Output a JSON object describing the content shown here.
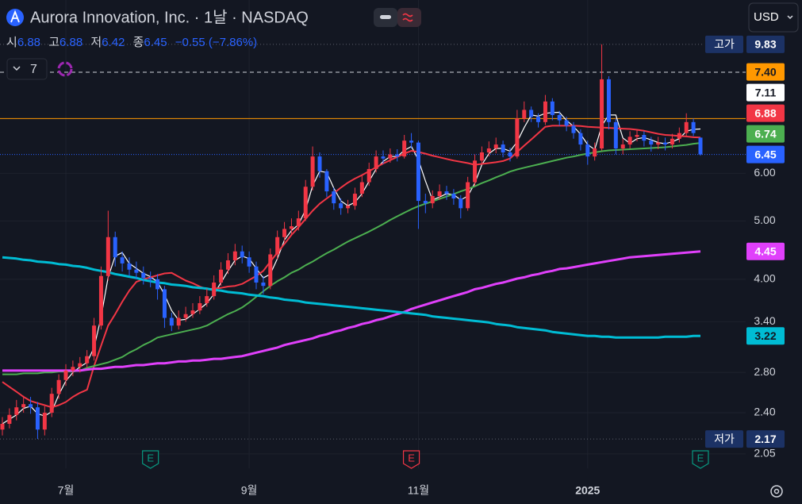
{
  "chart_data": {
    "type": "candlestick",
    "title": "Aurora Innovation, Inc. · 1날 · NASDAQ",
    "currency": "USD",
    "indicator_count": "7",
    "legend": {
      "open_label": "시",
      "high_label": "고",
      "low_label": "저",
      "close_label": "종",
      "change": "−0.55 (−7.86%)"
    },
    "high_label": "고가",
    "low_label": "저가",
    "log": true,
    "grid": true,
    "up_color": "#f23645",
    "down_color": "#2962ff",
    "ylim": [
      1.94,
      11.65
    ],
    "yticks": [
      {
        "value": 6,
        "label": "6.00"
      },
      {
        "value": 5,
        "label": "5.00"
      },
      {
        "value": 4,
        "label": "4.00"
      },
      {
        "value": 3.4,
        "label": "3.40"
      },
      {
        "value": 2.8,
        "label": "2.80"
      },
      {
        "value": 2.4,
        "label": "2.40"
      },
      {
        "value": 2.05,
        "label": "2.05"
      }
    ],
    "reference_line": {
      "value": 7.4,
      "label": "7.40",
      "color": "#ff9800"
    },
    "categories": [
      null,
      null,
      null,
      null,
      null,
      null,
      null,
      null,
      null,
      "7월",
      null,
      null,
      null,
      null,
      null,
      null,
      null,
      null,
      null,
      null,
      null,
      null,
      null,
      null,
      null,
      null,
      null,
      null,
      null,
      null,
      null,
      null,
      null,
      null,
      null,
      "9월",
      null,
      null,
      null,
      null,
      null,
      null,
      null,
      null,
      null,
      null,
      null,
      null,
      null,
      null,
      null,
      null,
      null,
      null,
      null,
      null,
      null,
      null,
      null,
      "11월",
      null,
      null,
      null,
      null,
      null,
      null,
      null,
      null,
      null,
      null,
      null,
      null,
      null,
      null,
      null,
      null,
      null,
      null,
      null,
      null,
      null,
      null,
      null,
      "2025",
      null,
      null,
      null,
      null,
      null,
      null,
      null,
      null,
      null,
      null,
      null,
      null,
      null,
      null,
      null,
      null
    ],
    "open": [
      2.25,
      2.3,
      2.38,
      2.45,
      2.48,
      2.45,
      2.25,
      2.4,
      2.58,
      2.72,
      2.82,
      2.86,
      2.9,
      2.98,
      3.35,
      4.05,
      4.7,
      4.35,
      4.25,
      4.15,
      4.1,
      4.02,
      4.0,
      3.85,
      3.45,
      3.35,
      3.45,
      3.5,
      3.55,
      3.65,
      3.75,
      3.95,
      4.15,
      4.3,
      4.45,
      4.35,
      4.2,
      3.95,
      3.9,
      4.4,
      4.7,
      4.85,
      4.9,
      5.05,
      5.7,
      6.4,
      6.05,
      5.6,
      5.35,
      5.25,
      5.3,
      5.55,
      5.8,
      6.1,
      6.4,
      6.35,
      6.45,
      6.4,
      6.8,
      6.75,
      5.4,
      5.35,
      5.5,
      5.6,
      5.55,
      5.45,
      5.25,
      5.8,
      6.3,
      6.5,
      6.6,
      6.7,
      6.5,
      6.4,
      7.4,
      7.65,
      7.45,
      7.3,
      7.9,
      7.5,
      7.35,
      7.2,
      7.0,
      6.7,
      6.4,
      6.6,
      8.6,
      7.3,
      6.6,
      6.7,
      6.9,
      6.95,
      6.8,
      6.7,
      6.75,
      6.7,
      6.85,
      7.0,
      7.3,
      6.88
    ],
    "high": [
      2.36,
      2.44,
      2.52,
      2.56,
      2.55,
      2.5,
      2.46,
      2.64,
      2.78,
      2.89,
      2.93,
      2.97,
      3.05,
      3.45,
      4.2,
      5.2,
      4.8,
      4.45,
      4.35,
      4.28,
      4.2,
      4.12,
      4.08,
      3.9,
      3.52,
      3.55,
      3.6,
      3.65,
      3.75,
      3.86,
      4.06,
      4.27,
      4.42,
      4.58,
      4.55,
      4.45,
      4.28,
      4.05,
      4.5,
      4.82,
      4.98,
      5.05,
      5.2,
      5.85,
      6.65,
      6.5,
      6.1,
      5.68,
      5.45,
      5.42,
      5.68,
      5.95,
      6.25,
      6.55,
      6.55,
      6.6,
      6.58,
      6.95,
      7.0,
      6.8,
      5.55,
      5.62,
      5.75,
      5.72,
      5.65,
      5.52,
      5.92,
      6.45,
      6.65,
      6.78,
      6.88,
      6.8,
      6.62,
      7.65,
      7.9,
      7.75,
      7.55,
      8.1,
      8.0,
      7.62,
      7.45,
      7.3,
      7.1,
      6.8,
      6.75,
      9.83,
      8.7,
      7.4,
      6.85,
      7.05,
      7.1,
      7.05,
      6.9,
      6.9,
      6.88,
      6.98,
      7.15,
      7.55,
      7.4,
      6.88
    ],
    "low": [
      2.2,
      2.26,
      2.33,
      2.4,
      2.39,
      2.17,
      2.2,
      2.36,
      2.53,
      2.66,
      2.76,
      2.8,
      2.85,
      2.93,
      3.3,
      3.98,
      4.2,
      4.12,
      4.05,
      4.0,
      3.92,
      3.88,
      3.7,
      3.32,
      3.28,
      3.3,
      3.4,
      3.45,
      3.5,
      3.6,
      3.7,
      3.9,
      4.08,
      4.22,
      4.25,
      4.1,
      3.85,
      3.78,
      3.85,
      4.32,
      4.62,
      4.75,
      4.82,
      5.0,
      5.62,
      5.9,
      5.48,
      5.22,
      5.12,
      5.15,
      5.22,
      5.48,
      5.72,
      6.02,
      6.22,
      6.25,
      6.28,
      6.35,
      6.6,
      4.85,
      5.15,
      5.25,
      5.42,
      5.42,
      5.32,
      5.05,
      5.2,
      5.72,
      6.2,
      6.4,
      6.48,
      6.38,
      6.28,
      6.35,
      7.3,
      7.3,
      7.15,
      7.22,
      7.35,
      7.2,
      7.05,
      6.85,
      6.55,
      6.2,
      6.3,
      6.55,
      7.1,
      6.45,
      6.45,
      6.6,
      6.78,
      6.65,
      6.52,
      6.58,
      6.55,
      6.6,
      6.75,
      6.9,
      6.92,
      6.42
    ],
    "close": [
      2.3,
      2.38,
      2.45,
      2.48,
      2.45,
      2.25,
      2.4,
      2.58,
      2.72,
      2.82,
      2.86,
      2.9,
      2.98,
      3.35,
      4.05,
      4.7,
      4.35,
      4.25,
      4.15,
      4.1,
      4.02,
      4.0,
      3.85,
      3.45,
      3.35,
      3.45,
      3.5,
      3.55,
      3.65,
      3.75,
      3.95,
      4.15,
      4.3,
      4.45,
      4.35,
      4.2,
      3.95,
      3.9,
      4.4,
      4.7,
      4.85,
      4.9,
      5.05,
      5.7,
      6.4,
      6.05,
      5.6,
      5.35,
      5.25,
      5.3,
      5.55,
      5.8,
      6.1,
      6.4,
      6.35,
      6.45,
      6.4,
      6.8,
      6.75,
      5.4,
      5.35,
      5.5,
      5.6,
      5.55,
      5.45,
      5.25,
      5.8,
      6.3,
      6.5,
      6.6,
      6.7,
      6.5,
      6.4,
      7.4,
      7.65,
      7.45,
      7.3,
      7.9,
      7.5,
      7.35,
      7.2,
      7.0,
      6.7,
      6.4,
      6.6,
      8.6,
      7.3,
      6.6,
      6.7,
      6.9,
      6.95,
      6.8,
      6.7,
      6.75,
      6.7,
      6.85,
      7.0,
      7.3,
      7.0,
      6.45
    ],
    "series": [
      {
        "color": "#ffffff",
        "width": 1.2,
        "label_text": "#131722",
        "values": [
          2.3,
          2.34,
          2.38,
          2.44,
          2.46,
          2.39,
          2.37,
          2.41,
          2.57,
          2.71,
          2.8,
          2.86,
          2.91,
          3.08,
          3.46,
          4.03,
          4.37,
          4.43,
          4.25,
          4.17,
          4.09,
          4.04,
          3.96,
          3.77,
          3.55,
          3.42,
          3.43,
          3.5,
          3.57,
          3.65,
          3.78,
          3.95,
          4.13,
          4.3,
          4.37,
          4.33,
          4.17,
          4.02,
          4.08,
          4.33,
          4.65,
          4.82,
          4.93,
          5.22,
          5.72,
          6.05,
          6.02,
          5.67,
          5.4,
          5.3,
          5.37,
          5.55,
          5.82,
          6.1,
          6.28,
          6.4,
          6.4,
          6.55,
          6.65,
          6.32,
          5.83,
          5.42,
          5.48,
          5.55,
          5.53,
          5.42,
          5.5,
          5.78,
          6.2,
          6.47,
          6.6,
          6.6,
          6.53,
          6.77,
          7.15,
          7.5,
          7.47,
          7.55,
          7.57,
          7.58,
          7.35,
          7.18,
          6.97,
          6.7,
          6.57,
          7.2,
          7.5,
          7.5,
          6.87,
          6.73,
          6.85,
          6.88,
          6.82,
          6.75,
          6.72,
          6.77,
          6.85,
          7.05,
          7.1,
          7.11
        ]
      },
      {
        "color": "#f23645",
        "width": 2,
        "label_text": "#ffffff",
        "values": [
          2.7,
          2.65,
          2.6,
          2.55,
          2.51,
          2.49,
          2.47,
          2.45,
          2.47,
          2.5,
          2.55,
          2.59,
          2.62,
          2.87,
          3.1,
          3.35,
          3.5,
          3.67,
          3.83,
          3.96,
          4.0,
          4.03,
          4.06,
          4.09,
          4.1,
          4.04,
          3.98,
          3.94,
          3.89,
          3.85,
          3.86,
          3.87,
          3.89,
          3.9,
          3.93,
          3.99,
          4.05,
          4.13,
          4.28,
          4.43,
          4.58,
          4.74,
          4.88,
          5.04,
          5.2,
          5.34,
          5.45,
          5.56,
          5.68,
          5.79,
          5.88,
          5.96,
          6.05,
          6.14,
          6.23,
          6.31,
          6.39,
          6.47,
          6.54,
          6.51,
          6.47,
          6.42,
          6.38,
          6.34,
          6.3,
          6.27,
          6.24,
          6.2,
          6.22,
          6.24,
          6.26,
          6.29,
          6.35,
          6.51,
          6.67,
          6.83,
          7.0,
          7.17,
          7.2,
          7.2,
          7.2,
          7.2,
          7.19,
          7.17,
          7.16,
          7.15,
          7.14,
          7.13,
          7.12,
          7.11,
          7.09,
          7.06,
          7.02,
          6.98,
          6.95,
          6.94,
          6.92,
          6.91,
          6.89,
          6.88
        ]
      },
      {
        "color": "#4caf50",
        "width": 2,
        "label_text": "#ffffff",
        "values": [
          2.78,
          2.78,
          2.78,
          2.79,
          2.79,
          2.79,
          2.8,
          2.8,
          2.81,
          2.81,
          2.81,
          2.82,
          2.85,
          2.87,
          2.89,
          2.91,
          2.94,
          2.97,
          3.02,
          3.06,
          3.11,
          3.15,
          3.2,
          3.22,
          3.24,
          3.26,
          3.28,
          3.3,
          3.32,
          3.35,
          3.4,
          3.45,
          3.5,
          3.54,
          3.59,
          3.66,
          3.74,
          3.82,
          3.9,
          3.97,
          4.03,
          4.1,
          4.15,
          4.22,
          4.28,
          4.35,
          4.42,
          4.48,
          4.55,
          4.62,
          4.68,
          4.74,
          4.8,
          4.87,
          4.94,
          5.02,
          5.09,
          5.16,
          5.23,
          5.29,
          5.34,
          5.39,
          5.44,
          5.49,
          5.54,
          5.6,
          5.65,
          5.71,
          5.78,
          5.84,
          5.91,
          5.97,
          6.04,
          6.09,
          6.13,
          6.17,
          6.21,
          6.25,
          6.29,
          6.33,
          6.37,
          6.4,
          6.44,
          6.47,
          6.5,
          6.53,
          6.55,
          6.56,
          6.57,
          6.58,
          6.59,
          6.6,
          6.61,
          6.62,
          6.63,
          6.65,
          6.67,
          6.69,
          6.72,
          6.74
        ]
      },
      {
        "color": "#e040fb",
        "width": 3,
        "label_text": "#ffffff",
        "values": [
          2.82,
          2.82,
          2.82,
          2.82,
          2.82,
          2.82,
          2.82,
          2.82,
          2.82,
          2.82,
          2.82,
          2.82,
          2.83,
          2.84,
          2.84,
          2.85,
          2.86,
          2.86,
          2.87,
          2.88,
          2.88,
          2.89,
          2.9,
          2.9,
          2.91,
          2.92,
          2.92,
          2.93,
          2.93,
          2.94,
          2.95,
          2.95,
          2.96,
          2.97,
          2.98,
          3.0,
          3.02,
          3.04,
          3.06,
          3.08,
          3.11,
          3.13,
          3.15,
          3.17,
          3.19,
          3.22,
          3.24,
          3.27,
          3.29,
          3.32,
          3.34,
          3.37,
          3.39,
          3.42,
          3.44,
          3.47,
          3.5,
          3.53,
          3.57,
          3.6,
          3.63,
          3.66,
          3.69,
          3.72,
          3.75,
          3.78,
          3.81,
          3.85,
          3.87,
          3.9,
          3.93,
          3.95,
          3.98,
          4.01,
          4.03,
          4.06,
          4.08,
          4.11,
          4.13,
          4.16,
          4.17,
          4.19,
          4.21,
          4.23,
          4.25,
          4.27,
          4.29,
          4.31,
          4.33,
          4.35,
          4.36,
          4.37,
          4.38,
          4.39,
          4.4,
          4.41,
          4.42,
          4.43,
          4.44,
          4.45
        ]
      },
      {
        "color": "#00bcd4",
        "width": 3,
        "label_text": "#131722",
        "values": [
          4.35,
          4.34,
          4.33,
          4.31,
          4.3,
          4.28,
          4.27,
          4.26,
          4.24,
          4.23,
          4.21,
          4.2,
          4.18,
          4.15,
          4.13,
          4.11,
          4.08,
          4.06,
          4.04,
          4.02,
          3.99,
          3.97,
          3.95,
          3.94,
          3.92,
          3.91,
          3.9,
          3.88,
          3.87,
          3.86,
          3.84,
          3.83,
          3.81,
          3.8,
          3.79,
          3.77,
          3.76,
          3.75,
          3.73,
          3.72,
          3.7,
          3.69,
          3.68,
          3.66,
          3.65,
          3.64,
          3.63,
          3.62,
          3.61,
          3.6,
          3.59,
          3.58,
          3.57,
          3.56,
          3.55,
          3.54,
          3.53,
          3.52,
          3.51,
          3.5,
          3.49,
          3.47,
          3.46,
          3.45,
          3.44,
          3.43,
          3.42,
          3.41,
          3.4,
          3.39,
          3.37,
          3.36,
          3.35,
          3.33,
          3.32,
          3.31,
          3.3,
          3.29,
          3.27,
          3.26,
          3.25,
          3.24,
          3.23,
          3.22,
          3.22,
          3.21,
          3.21,
          3.2,
          3.2,
          3.2,
          3.2,
          3.2,
          3.2,
          3.2,
          3.21,
          3.21,
          3.21,
          3.21,
          3.22,
          3.22
        ]
      }
    ],
    "earnings": [
      null,
      null,
      null,
      null,
      null,
      null,
      null,
      null,
      null,
      null,
      null,
      null,
      null,
      null,
      null,
      null,
      null,
      null,
      null,
      null,
      null,
      {
        "label": "E",
        "color": "#089981"
      },
      null,
      null,
      null,
      null,
      null,
      null,
      null,
      null,
      null,
      null,
      null,
      null,
      null,
      null,
      null,
      null,
      null,
      null,
      null,
      null,
      null,
      null,
      null,
      null,
      null,
      null,
      null,
      null,
      null,
      null,
      null,
      null,
      null,
      null,
      null,
      null,
      {
        "label": "E",
        "color": "#f23645"
      },
      null,
      null,
      null,
      null,
      null,
      null,
      null,
      null,
      null,
      null,
      null,
      null,
      null,
      null,
      null,
      null,
      null,
      null,
      null,
      null,
      null,
      null,
      null,
      null,
      null,
      null,
      null,
      null,
      null,
      null,
      null,
      null,
      null,
      null,
      null,
      null,
      null,
      null,
      null,
      null,
      {
        "label": "E",
        "color": "#089981"
      }
    ]
  }
}
